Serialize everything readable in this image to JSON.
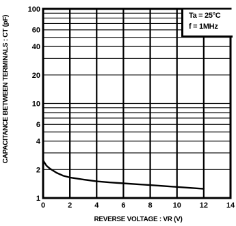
{
  "chart_data": {
    "type": "line",
    "xlabel": "REVERSE VOLTAGE : VR (V)",
    "ylabel": "CAPACITANCE BETWEEN TERMINALS : CT (pF)",
    "xlim": [
      0,
      14
    ],
    "ylim": [
      1,
      100
    ],
    "y_scale": "log",
    "x_ticks": [
      "0",
      "2",
      "4",
      "6",
      "8",
      "10",
      "12",
      "14"
    ],
    "y_ticks": [
      {
        "value": 1,
        "label": "1"
      },
      {
        "value": 2,
        "label": "2"
      },
      {
        "value": 4,
        "label": "4"
      },
      {
        "value": 6,
        "label": "6"
      },
      {
        "value": 10,
        "label": "10"
      },
      {
        "value": 20,
        "label": "20"
      },
      {
        "value": 40,
        "label": "40"
      },
      {
        "value": 60,
        "label": "60"
      },
      {
        "value": 100,
        "label": "100"
      }
    ],
    "grid": true,
    "annotations": [
      "Ta = 25°C",
      "f = 1MHz"
    ],
    "series": [
      {
        "x": [
          0,
          0.25,
          0.5,
          1,
          1.5,
          2,
          3,
          4,
          5,
          6,
          7,
          8,
          9,
          10,
          11,
          12
        ],
        "y": [
          2.5,
          2.2,
          2.05,
          1.85,
          1.72,
          1.65,
          1.57,
          1.5,
          1.46,
          1.43,
          1.4,
          1.37,
          1.34,
          1.31,
          1.28,
          1.25
        ]
      }
    ],
    "colors": {
      "line": "#000000",
      "grid": "#000000",
      "background": "#ffffff"
    }
  }
}
